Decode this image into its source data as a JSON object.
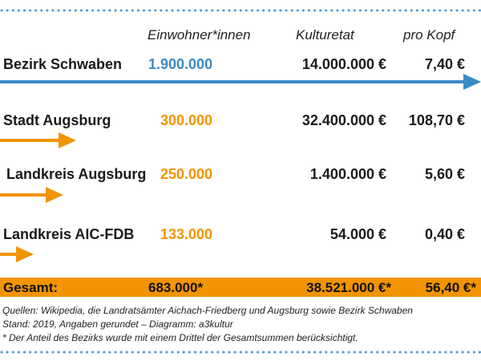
{
  "chart_data": {
    "type": "table",
    "headers": {
      "population": "Einwohner*innen",
      "budget": "Kulturetat",
      "per_capita": "pro Kopf"
    },
    "rows": [
      {
        "name": "Bezirk Schwaben",
        "population": "1.900.000",
        "budget": "14.000.000 €",
        "per_capita": "7,40 €",
        "population_value": 1900000,
        "color": "#3a8ac6"
      },
      {
        "name": "Stadt Augsburg",
        "population": "300.000",
        "budget": "32.400.000 €",
        "per_capita": "108,70 €",
        "population_value": 300000,
        "color": "#f29400"
      },
      {
        "name": "Landkreis Augsburg",
        "population": "250.000",
        "budget": "1.400.000 €",
        "per_capita": "5,60 €",
        "population_value": 250000,
        "color": "#f29400"
      },
      {
        "name": "Landkreis AIC-FDB",
        "population": "133.000",
        "budget": "54.000 €",
        "per_capita": "0,40 €",
        "population_value": 133000,
        "color": "#f29400"
      }
    ],
    "total": {
      "name": "Gesamt:",
      "population": "683.000*",
      "budget": "38.521.000 €*",
      "per_capita": "56,40 €*"
    }
  },
  "footnotes": [
    "Quellen: Wikipedia, die Landratsämter Aichach-Friedberg und Augsburg sowie Bezirk Schwaben",
    "Stand: 2019, Angaben gerundet – Diagramm: a3kultur",
    "* Der Anteil des Bezirks wurde mit einem Drittel der Gesamtsummen berücksichtigt."
  ],
  "colors": {
    "accent_orange": "#f29400",
    "accent_blue": "#3a8ac6",
    "dots": "#4a9ad6"
  }
}
